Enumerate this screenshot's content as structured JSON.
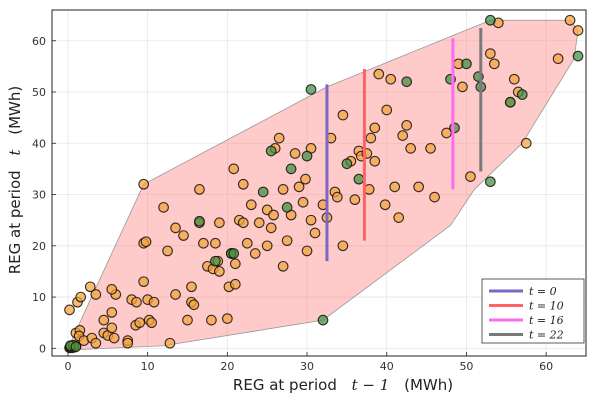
{
  "chart_data": {
    "type": "scatter",
    "title": "",
    "xlabel_text": "REG at period",
    "xlabel_math": "t − 1",
    "xlabel_unit": "(MWh)",
    "ylabel_text": "REG at period",
    "ylabel_math": "t",
    "ylabel_unit": "(MWh)",
    "xlim": [
      -2,
      65
    ],
    "ylim": [
      -1.5,
      66
    ],
    "xticks": [
      0,
      10,
      20,
      30,
      40,
      50,
      60
    ],
    "yticks": [
      0,
      10,
      20,
      30,
      40,
      50,
      60
    ],
    "grid": true,
    "legend_position": "bottom-right",
    "colors": {
      "orange_points": "#f5a43a",
      "green_points": "#3f8f3f",
      "hull_fill": "#ff7b7b",
      "hull_edge": "#999999"
    },
    "hull": [
      [
        0,
        0
      ],
      [
        9.5,
        32
      ],
      [
        32.5,
        51
      ],
      [
        53,
        64
      ],
      [
        63,
        64
      ],
      [
        64,
        62
      ],
      [
        63.5,
        56.5
      ],
      [
        57,
        40
      ],
      [
        51,
        31
      ],
      [
        48,
        24
      ],
      [
        32,
        5.5
      ],
      [
        12,
        0.5
      ],
      [
        0.5,
        -0.3
      ]
    ],
    "series": [
      {
        "name": "orange",
        "color": "#f5a43a",
        "points": [
          [
            0.2,
            0.1
          ],
          [
            0.3,
            0.2
          ],
          [
            0.5,
            0.1
          ],
          [
            0.6,
            0.3
          ],
          [
            0.8,
            0.2
          ],
          [
            1.0,
            0.4
          ],
          [
            0.4,
            0.5
          ],
          [
            0.7,
            0.6
          ],
          [
            0.2,
            7.5
          ],
          [
            1.2,
            9.0
          ],
          [
            1.6,
            10.0
          ],
          [
            2.8,
            12.0
          ],
          [
            3.5,
            10.5
          ],
          [
            1.0,
            3.0
          ],
          [
            1.5,
            3.5
          ],
          [
            1.4,
            2.4
          ],
          [
            2.0,
            1.5
          ],
          [
            3.0,
            2.0
          ],
          [
            3.5,
            1.0
          ],
          [
            4.5,
            3.0
          ],
          [
            5.0,
            2.5
          ],
          [
            5.5,
            4.0
          ],
          [
            5.8,
            2.0
          ],
          [
            6.0,
            10.5
          ],
          [
            4.5,
            5.5
          ],
          [
            5.5,
            7.0
          ],
          [
            5.5,
            11.5
          ],
          [
            7.5,
            1.5
          ],
          [
            7.5,
            1.0
          ],
          [
            8.0,
            9.5
          ],
          [
            8.5,
            4.5
          ],
          [
            8.6,
            9.0
          ],
          [
            9.0,
            5.0
          ],
          [
            9.5,
            13.0
          ],
          [
            9.5,
            20.5
          ],
          [
            9.8,
            20.8
          ],
          [
            10.2,
            5.5
          ],
          [
            10.5,
            5.0
          ],
          [
            10.0,
            9.5
          ],
          [
            9.5,
            32.0
          ],
          [
            10.8,
            9.0
          ],
          [
            12.0,
            27.5
          ],
          [
            12.5,
            19.0
          ],
          [
            12.8,
            1.0
          ],
          [
            13.5,
            10.5
          ],
          [
            13.5,
            23.5
          ],
          [
            14.5,
            22.0
          ],
          [
            15.0,
            5.5
          ],
          [
            15.5,
            9.0
          ],
          [
            15.5,
            12.0
          ],
          [
            15.8,
            8.5
          ],
          [
            16.5,
            31.0
          ],
          [
            16.5,
            24.5
          ],
          [
            17.0,
            20.5
          ],
          [
            17.5,
            16.0
          ],
          [
            18.0,
            5.5
          ],
          [
            18.2,
            15.5
          ],
          [
            18.5,
            20.5
          ],
          [
            18.8,
            17.0
          ],
          [
            19.0,
            24.5
          ],
          [
            19.0,
            15.0
          ],
          [
            20.0,
            5.8
          ],
          [
            20.2,
            12.0
          ],
          [
            20.5,
            18.5
          ],
          [
            20.8,
            35.0
          ],
          [
            21.0,
            16.5
          ],
          [
            21.0,
            12.5
          ],
          [
            21.5,
            25.0
          ],
          [
            22.0,
            24.5
          ],
          [
            22.0,
            32.0
          ],
          [
            22.5,
            20.5
          ],
          [
            23.0,
            28.0
          ],
          [
            23.5,
            18.5
          ],
          [
            24.0,
            24.5
          ],
          [
            25.0,
            27.0
          ],
          [
            25.0,
            20.0
          ],
          [
            25.5,
            23.5
          ],
          [
            25.8,
            26.0
          ],
          [
            26.0,
            39.0
          ],
          [
            26.5,
            41.0
          ],
          [
            27.0,
            31.0
          ],
          [
            27.0,
            16.0
          ],
          [
            27.5,
            21.0
          ],
          [
            28.0,
            26.0
          ],
          [
            28.5,
            38.0
          ],
          [
            29.0,
            31.5
          ],
          [
            29.5,
            28.5
          ],
          [
            29.8,
            33.0
          ],
          [
            30.0,
            19.0
          ],
          [
            30.5,
            25.0
          ],
          [
            30.5,
            39.0
          ],
          [
            31.0,
            22.5
          ],
          [
            32.0,
            28.0
          ],
          [
            32.5,
            25.5
          ],
          [
            33.0,
            41.0
          ],
          [
            33.5,
            30.5
          ],
          [
            33.8,
            29.5
          ],
          [
            34.5,
            20.0
          ],
          [
            34.5,
            45.5
          ],
          [
            35.5,
            36.5
          ],
          [
            36.0,
            29.0
          ],
          [
            36.5,
            38.5
          ],
          [
            36.8,
            37.5
          ],
          [
            37.5,
            38.0
          ],
          [
            37.8,
            31.0
          ],
          [
            38.0,
            41.0
          ],
          [
            38.5,
            36.5
          ],
          [
            38.5,
            43.0
          ],
          [
            39.0,
            53.5
          ],
          [
            39.8,
            28.0
          ],
          [
            40.0,
            46.5
          ],
          [
            40.5,
            52.5
          ],
          [
            41.0,
            31.5
          ],
          [
            41.5,
            25.5
          ],
          [
            42.0,
            41.5
          ],
          [
            42.5,
            43.5
          ],
          [
            43.0,
            39.0
          ],
          [
            44.0,
            31.5
          ],
          [
            45.5,
            39.0
          ],
          [
            46.0,
            29.5
          ],
          [
            47.5,
            42.0
          ],
          [
            49.0,
            55.5
          ],
          [
            49.5,
            51.0
          ],
          [
            50.5,
            33.5
          ],
          [
            53.0,
            57.5
          ],
          [
            53.5,
            55.5
          ],
          [
            54.0,
            63.5
          ],
          [
            55.5,
            48.0
          ],
          [
            56.0,
            52.5
          ],
          [
            56.5,
            50.0
          ],
          [
            57.5,
            40.0
          ],
          [
            61.5,
            56.5
          ],
          [
            63.0,
            64.0
          ],
          [
            64.0,
            62.0
          ]
        ]
      },
      {
        "name": "green",
        "color": "#3f8f3f",
        "points": [
          [
            0.3,
            0.5
          ],
          [
            1.0,
            0.3
          ],
          [
            18.5,
            17.0
          ],
          [
            20.5,
            18.5
          ],
          [
            20.8,
            18.5
          ],
          [
            16.5,
            24.8
          ],
          [
            24.5,
            30.5
          ],
          [
            25.5,
            38.5
          ],
          [
            27.5,
            27.5
          ],
          [
            28.0,
            35.0
          ],
          [
            30.0,
            37.5
          ],
          [
            30.5,
            50.5
          ],
          [
            32.0,
            5.5
          ],
          [
            35.0,
            36.0
          ],
          [
            36.5,
            33.0
          ],
          [
            42.5,
            52.0
          ],
          [
            48.0,
            52.5
          ],
          [
            48.5,
            43.0
          ],
          [
            50.0,
            55.5
          ],
          [
            51.5,
            53.0
          ],
          [
            51.8,
            51.0
          ],
          [
            53.0,
            64.0
          ],
          [
            53.0,
            32.5
          ],
          [
            55.5,
            48.0
          ],
          [
            57.0,
            49.5
          ],
          [
            64.0,
            57.0
          ]
        ]
      }
    ],
    "segments": [
      {
        "label": "t = 0",
        "color": "#7b68c4",
        "x": 32.5,
        "y0": 17.0,
        "y1": 51.5
      },
      {
        "label": "t = 10",
        "color": "#ff6262",
        "x": 37.2,
        "y0": 21.0,
        "y1": 54.5
      },
      {
        "label": "t = 16",
        "color": "#ff6bf0",
        "x": 48.3,
        "y0": 31.0,
        "y1": 60.5
      },
      {
        "label": "t = 22",
        "color": "#7a7a7a",
        "x": 51.8,
        "y0": 34.5,
        "y1": 62.5
      }
    ]
  }
}
